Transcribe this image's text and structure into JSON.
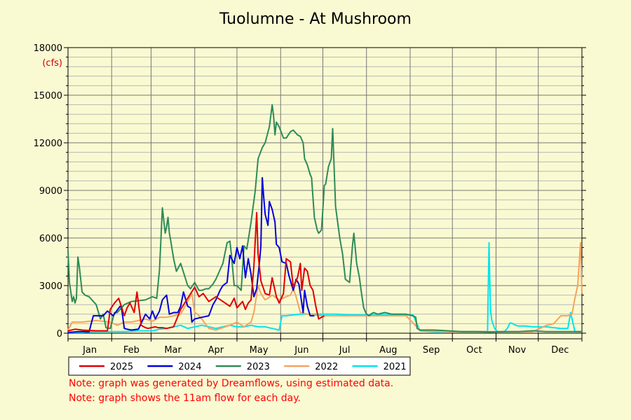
{
  "chart_data": {
    "type": "line",
    "title": "Tuolumne - At Mushroom",
    "unit": "(cfs)",
    "ylim": [
      0,
      18000
    ],
    "y_ticks": [
      0,
      3000,
      6000,
      9000,
      12000,
      15000,
      18000
    ],
    "y_tick_labels": [
      "0",
      "3000",
      "6000",
      "9000",
      "12000",
      "15000",
      "18000"
    ],
    "xlim": [
      0,
      365
    ],
    "month_labels": [
      "Jan",
      "Feb",
      "Mar",
      "Apr",
      "May",
      "Jun",
      "Jul",
      "Aug",
      "Sep",
      "Oct",
      "Nov",
      "Dec"
    ],
    "grid": true,
    "legend_position": "bottom",
    "series": [
      {
        "name": "2025",
        "color": "#e00000",
        "x": [
          0,
          5,
          10,
          20,
          28,
          30,
          33,
          36,
          40,
          42,
          44,
          47,
          49,
          52,
          55,
          57,
          59,
          62,
          64,
          67,
          70,
          75,
          80,
          85,
          90,
          93,
          96,
          100,
          105,
          110,
          115,
          118,
          120,
          124,
          126,
          128,
          130,
          132,
          134,
          135,
          137,
          140,
          143,
          145,
          148,
          150,
          153,
          155,
          158,
          160,
          163,
          165,
          166,
          168,
          170,
          172,
          174,
          176,
          178,
          182
        ],
        "y": [
          150,
          250,
          200,
          150,
          150,
          1500,
          1900,
          2200,
          1100,
          1600,
          1900,
          1300,
          2600,
          500,
          350,
          300,
          350,
          400,
          350,
          350,
          300,
          400,
          1500,
          2200,
          2900,
          2300,
          2500,
          2000,
          2300,
          2000,
          1700,
          2200,
          1600,
          2000,
          1500,
          1900,
          2100,
          4200,
          7600,
          5000,
          3300,
          2500,
          2400,
          3500,
          2300,
          1900,
          2500,
          4700,
          4500,
          2900,
          3500,
          4400,
          2700,
          4100,
          3900,
          3000,
          2700,
          1700,
          900,
          1100
        ]
      },
      {
        "name": "2024",
        "color": "#0000dd",
        "x": [
          0,
          8,
          15,
          18,
          20,
          25,
          28,
          32,
          37,
          38,
          40,
          42,
          45,
          50,
          55,
          58,
          60,
          62,
          65,
          67,
          70,
          72,
          75,
          78,
          80,
          82,
          85,
          87,
          88,
          90,
          95,
          100,
          103,
          105,
          108,
          110,
          113,
          115,
          118,
          120,
          122,
          124,
          126,
          128,
          130,
          132,
          134,
          136,
          137,
          138,
          139,
          140,
          142,
          143,
          145,
          147,
          148,
          150,
          152,
          155,
          157,
          160,
          162,
          164,
          165,
          167,
          168,
          170,
          172,
          175
        ],
        "y": [
          50,
          100,
          100,
          1100,
          1100,
          1100,
          1400,
          1100,
          1700,
          1600,
          300,
          250,
          200,
          250,
          1200,
          900,
          1400,
          900,
          1400,
          2100,
          2400,
          1200,
          1300,
          1300,
          1700,
          2600,
          1700,
          1600,
          700,
          900,
          1000,
          1100,
          1800,
          2100,
          2700,
          3000,
          3200,
          4900,
          4400,
          5400,
          4700,
          5500,
          3500,
          4700,
          3700,
          2300,
          2800,
          4500,
          5500,
          9800,
          8600,
          7500,
          6800,
          8300,
          7800,
          7000,
          5600,
          5400,
          4500,
          4400,
          3600,
          2700,
          3400,
          3100,
          2500,
          1300,
          2700,
          1700,
          1100,
          1100
        ]
      },
      {
        "name": "2023",
        "color": "#2e8b57",
        "x": [
          0,
          1,
          3,
          4,
          5,
          6,
          7,
          8,
          10,
          12,
          15,
          20,
          23,
          25,
          27,
          30,
          33,
          35,
          40,
          45,
          55,
          60,
          63,
          65,
          67,
          69,
          70,
          71,
          72,
          73,
          75,
          77,
          80,
          85,
          87,
          90,
          93,
          95,
          98,
          100,
          103,
          105,
          110,
          113,
          115,
          116,
          118,
          120,
          123,
          125,
          127,
          130,
          133,
          135,
          138,
          140,
          143,
          145,
          146,
          147,
          148,
          150,
          153,
          155,
          158,
          160,
          163,
          165,
          167,
          168,
          170,
          172,
          173,
          175,
          177,
          178,
          180,
          181,
          182,
          183,
          185,
          187,
          188,
          190,
          193,
          195,
          197,
          200,
          202,
          203,
          205,
          207,
          208,
          210,
          212,
          214,
          215,
          217,
          220,
          225,
          230,
          235,
          240,
          245,
          247,
          248,
          250,
          260,
          270,
          280,
          290,
          300,
          310,
          320,
          330,
          340,
          350,
          360,
          365
        ],
        "y": [
          5200,
          3200,
          2000,
          2300,
          1900,
          2200,
          4800,
          4200,
          2600,
          2400,
          2300,
          1800,
          900,
          1200,
          350,
          300,
          1300,
          1300,
          1800,
          2000,
          2100,
          2300,
          2200,
          4000,
          7900,
          6300,
          6700,
          7300,
          6300,
          5800,
          4700,
          3900,
          4400,
          3000,
          2800,
          3200,
          2700,
          2700,
          2800,
          2800,
          3100,
          3400,
          4400,
          5700,
          5800,
          5000,
          3000,
          3000,
          2700,
          5500,
          5300,
          7000,
          9000,
          11000,
          11700,
          12000,
          13000,
          14400,
          13700,
          12500,
          13300,
          13000,
          12300,
          12300,
          12700,
          12800,
          12500,
          12400,
          12000,
          11000,
          10600,
          10000,
          9800,
          7300,
          6500,
          6300,
          6500,
          7800,
          9300,
          9400,
          10500,
          11000,
          12900,
          8000,
          6000,
          5000,
          3400,
          3200,
          5500,
          6300,
          4400,
          3500,
          2800,
          1600,
          1200,
          1100,
          1200,
          1300,
          1200,
          1300,
          1200,
          1200,
          1200,
          1100,
          1000,
          300,
          200,
          200,
          150,
          100,
          100,
          80,
          100,
          100,
          150,
          100,
          100,
          100,
          100
        ]
      },
      {
        "name": "2022",
        "color": "#f4a460",
        "x": [
          0,
          3,
          5,
          10,
          20,
          30,
          35,
          40,
          45,
          50,
          55,
          60,
          65,
          70,
          75,
          80,
          85,
          88,
          90,
          92,
          95,
          100,
          105,
          110,
          115,
          120,
          125,
          130,
          132,
          135,
          137,
          140,
          142,
          145,
          150,
          155,
          158,
          160,
          162,
          165,
          170,
          180,
          190,
          200,
          210,
          220,
          230,
          240,
          250,
          260,
          270,
          280,
          290,
          300,
          310,
          320,
          330,
          335,
          340,
          345,
          350,
          355,
          358,
          360,
          362,
          364,
          365
        ],
        "y": [
          200,
          700,
          700,
          700,
          800,
          700,
          500,
          700,
          700,
          800,
          900,
          750,
          1000,
          1000,
          1100,
          1200,
          2000,
          2500,
          1300,
          1200,
          900,
          300,
          200,
          350,
          500,
          700,
          400,
          700,
          1300,
          3000,
          2500,
          2100,
          2200,
          2400,
          2100,
          2300,
          2400,
          2800,
          2300,
          1300,
          1200,
          1100,
          1100,
          1100,
          1100,
          1100,
          1100,
          1100,
          200,
          150,
          100,
          100,
          100,
          100,
          100,
          100,
          100,
          300,
          500,
          600,
          1100,
          1100,
          1200,
          2200,
          3000,
          5700,
          2500
        ]
      },
      {
        "name": "2021",
        "color": "#00e5ee",
        "x": [
          0,
          10,
          20,
          30,
          40,
          50,
          60,
          65,
          70,
          75,
          80,
          85,
          90,
          95,
          100,
          105,
          110,
          115,
          120,
          125,
          130,
          135,
          140,
          145,
          150,
          152,
          155,
          160,
          165,
          170,
          180,
          190,
          200,
          210,
          220,
          230,
          240,
          245,
          250,
          260,
          270,
          280,
          290,
          298,
          299,
          300,
          301,
          303,
          305,
          307,
          310,
          312,
          314,
          316,
          318,
          320,
          325,
          330,
          335,
          340,
          345,
          350,
          355,
          357,
          358,
          360,
          365
        ],
        "y": [
          50,
          50,
          100,
          100,
          100,
          150,
          150,
          250,
          300,
          400,
          500,
          300,
          400,
          500,
          400,
          300,
          400,
          500,
          400,
          400,
          500,
          400,
          400,
          300,
          200,
          1100,
          1100,
          1150,
          1200,
          1200,
          1200,
          1200,
          1150,
          1150,
          1150,
          1150,
          1150,
          1150,
          150,
          100,
          100,
          100,
          100,
          100,
          5700,
          1500,
          800,
          300,
          100,
          100,
          100,
          300,
          650,
          600,
          500,
          450,
          450,
          400,
          400,
          400,
          350,
          300,
          300,
          1300,
          900,
          100,
          100
        ]
      }
    ]
  },
  "notes": [
    "Note: graph was generated by Dreamflows, using estimated data.",
    "Note: graph shows the 11am flow for each day."
  ]
}
